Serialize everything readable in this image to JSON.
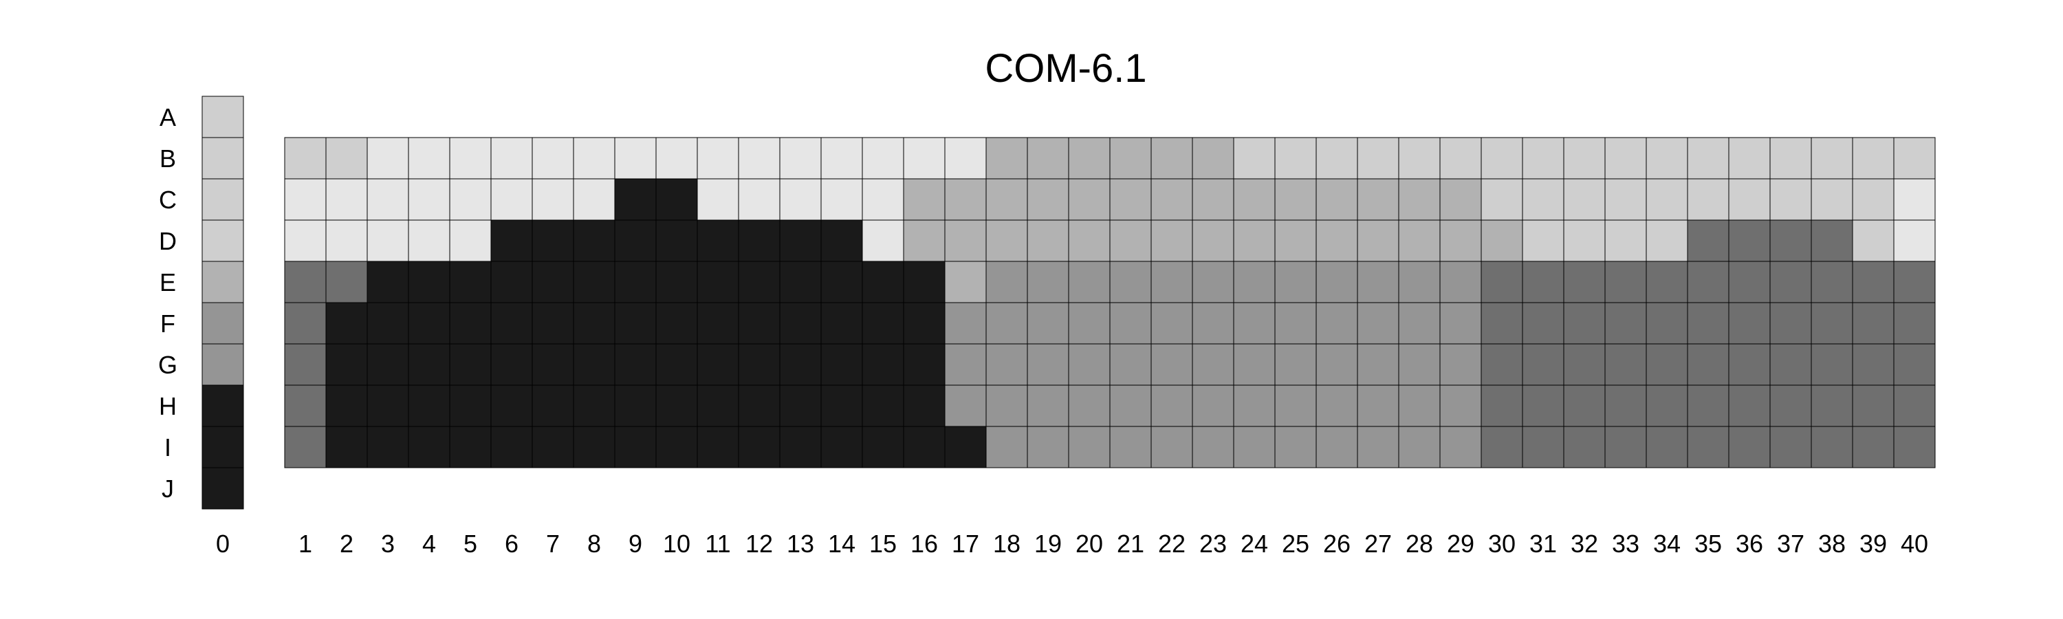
{
  "chart_data": {
    "type": "heatmap",
    "title": "COM-6.1",
    "rows": [
      "A",
      "B",
      "C",
      "D",
      "E",
      "F",
      "G",
      "H",
      "I",
      "J"
    ],
    "key_column": {
      "label": "0",
      "values": [
        "#cfcfcf",
        "#cfcfcf",
        "#cfcfcf",
        "#cfcfcf",
        "#b2b2b2",
        "#959595",
        "#959595",
        "#1a1a1a",
        "#1a1a1a",
        "#1a1a1a"
      ]
    },
    "columns": [
      "1",
      "2",
      "3",
      "4",
      "5",
      "6",
      "7",
      "8",
      "9",
      "10",
      "11",
      "12",
      "13",
      "14",
      "15",
      "16",
      "17",
      "18",
      "19",
      "20",
      "21",
      "22",
      "23",
      "24",
      "25",
      "26",
      "27",
      "28",
      "29",
      "30",
      "31",
      "32",
      "33",
      "34",
      "35",
      "36",
      "37",
      "38",
      "39",
      "40"
    ],
    "grid_rows": [
      "B",
      "C",
      "D",
      "E",
      "F",
      "G",
      "H",
      "I"
    ],
    "palette": {
      "1": "#e6e6e6",
      "2": "#cfcfcf",
      "3": "#b2b2b2",
      "4": "#959595",
      "5": "#6f6f6f",
      "6": "#1a1a1a"
    },
    "grid_values": [
      [
        2,
        2,
        1,
        1,
        1,
        1,
        1,
        1,
        1,
        1,
        1,
        1,
        1,
        1,
        1,
        1,
        1,
        3,
        3,
        3,
        3,
        3,
        3,
        2,
        2,
        2,
        2,
        2,
        2,
        2,
        2,
        2,
        2,
        2,
        2,
        2,
        2,
        2,
        2,
        2
      ],
      [
        1,
        1,
        1,
        1,
        1,
        1,
        1,
        1,
        6,
        6,
        1,
        1,
        1,
        1,
        1,
        3,
        3,
        3,
        3,
        3,
        3,
        3,
        3,
        3,
        3,
        3,
        3,
        3,
        3,
        2,
        2,
        2,
        2,
        2,
        2,
        2,
        2,
        2,
        2,
        1
      ],
      [
        1,
        1,
        1,
        1,
        1,
        6,
        6,
        6,
        6,
        6,
        6,
        6,
        6,
        6,
        1,
        3,
        3,
        3,
        3,
        3,
        3,
        3,
        3,
        3,
        3,
        3,
        3,
        3,
        3,
        3,
        2,
        2,
        2,
        2,
        5,
        5,
        5,
        5,
        2,
        1
      ],
      [
        5,
        5,
        6,
        6,
        6,
        6,
        6,
        6,
        6,
        6,
        6,
        6,
        6,
        6,
        6,
        6,
        3,
        4,
        4,
        4,
        4,
        4,
        4,
        4,
        4,
        4,
        4,
        4,
        4,
        5,
        5,
        5,
        5,
        5,
        5,
        5,
        5,
        5,
        5,
        5
      ],
      [
        5,
        6,
        6,
        6,
        6,
        6,
        6,
        6,
        6,
        6,
        6,
        6,
        6,
        6,
        6,
        6,
        4,
        4,
        4,
        4,
        4,
        4,
        4,
        4,
        4,
        4,
        4,
        4,
        4,
        5,
        5,
        5,
        5,
        5,
        5,
        5,
        5,
        5,
        5,
        5
      ],
      [
        5,
        6,
        6,
        6,
        6,
        6,
        6,
        6,
        6,
        6,
        6,
        6,
        6,
        6,
        6,
        6,
        4,
        4,
        4,
        4,
        4,
        4,
        4,
        4,
        4,
        4,
        4,
        4,
        4,
        5,
        5,
        5,
        5,
        5,
        5,
        5,
        5,
        5,
        5,
        5
      ],
      [
        5,
        6,
        6,
        6,
        6,
        6,
        6,
        6,
        6,
        6,
        6,
        6,
        6,
        6,
        6,
        6,
        4,
        4,
        4,
        4,
        4,
        4,
        4,
        4,
        4,
        4,
        4,
        4,
        4,
        5,
        5,
        5,
        5,
        5,
        5,
        5,
        5,
        5,
        5,
        5
      ],
      [
        5,
        6,
        6,
        6,
        6,
        6,
        6,
        6,
        6,
        6,
        6,
        6,
        6,
        6,
        6,
        6,
        6,
        4,
        4,
        4,
        4,
        4,
        4,
        4,
        4,
        4,
        4,
        4,
        4,
        5,
        5,
        5,
        5,
        5,
        5,
        5,
        5,
        5,
        5,
        5
      ]
    ]
  }
}
